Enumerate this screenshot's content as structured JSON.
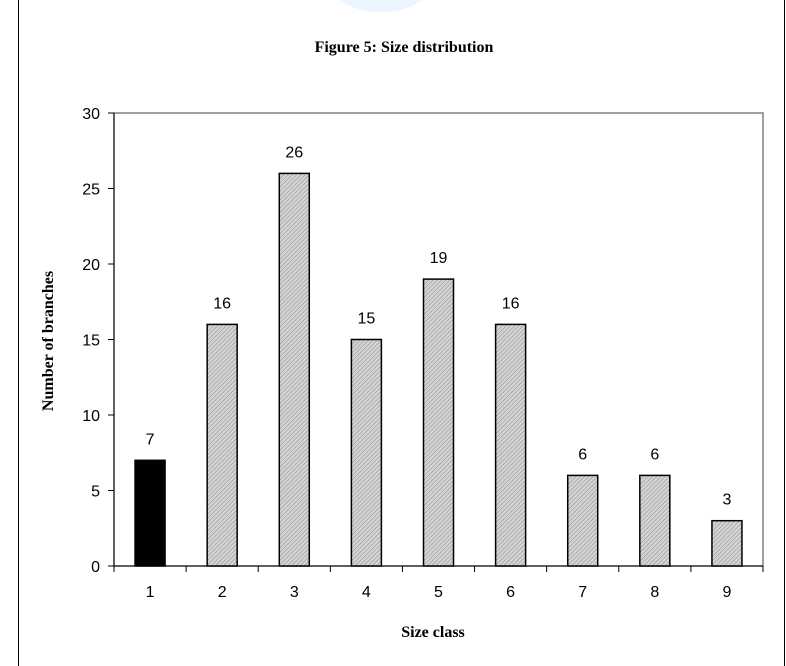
{
  "chart_data": {
    "type": "bar",
    "title": "Figure 5: Size distribution",
    "xlabel": "Size class",
    "ylabel": "Number of  branches",
    "categories": [
      "1",
      "2",
      "3",
      "4",
      "5",
      "6",
      "7",
      "8",
      "9"
    ],
    "values": [
      7,
      16,
      26,
      15,
      19,
      16,
      6,
      6,
      3
    ],
    "ylim": [
      0,
      30
    ],
    "yticks": [
      0,
      5,
      10,
      15,
      20,
      25,
      30
    ],
    "grid": false,
    "legend": "none",
    "colors": {
      "highlight_bar": "#000000",
      "default_bar": "#c8c8c8",
      "bar_edge": "#000000",
      "plot_border": "#808080"
    },
    "highlight_index": 0
  }
}
